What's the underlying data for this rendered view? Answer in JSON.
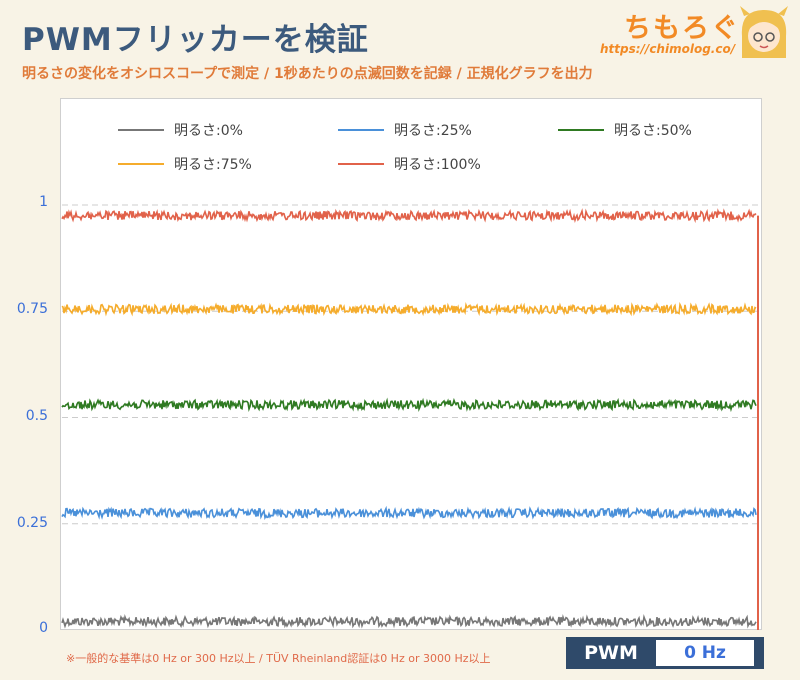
{
  "header": {
    "title": "PWMフリッカーを検証",
    "subtitle": "明るさの変化をオシロスコープで測定 / 1秒あたりの点滅回数を記録 / 正規化グラフを出力"
  },
  "logo": {
    "name": "ちもろぐ",
    "url": "https://chimolog.co/"
  },
  "footer": {
    "note": "※一般的な基準は0 Hz or 300 Hz以上 / TÜV Rheinland認証は0 Hz or 3000 Hz以上",
    "badge_label": "PWM",
    "badge_value": "0 Hz"
  },
  "chart_data": {
    "type": "line",
    "ylim": [
      0,
      1.0
    ],
    "y_ticks": [
      "0",
      "0.25",
      "0.5",
      "0.75",
      "1"
    ],
    "grid": "horizontal dashed",
    "legend_position": "top",
    "series": [
      {
        "name": "明るさ:0%",
        "level": 0.02,
        "color": "#777777"
      },
      {
        "name": "明るさ:25%",
        "level": 0.275,
        "color": "#4a90d9"
      },
      {
        "name": "明るさ:50%",
        "level": 0.53,
        "color": "#2f7a22"
      },
      {
        "name": "明るさ:75%",
        "level": 0.755,
        "color": "#f5ac2c"
      },
      {
        "name": "明るさ:100%",
        "level": 0.975,
        "color": "#e1624a"
      }
    ]
  }
}
